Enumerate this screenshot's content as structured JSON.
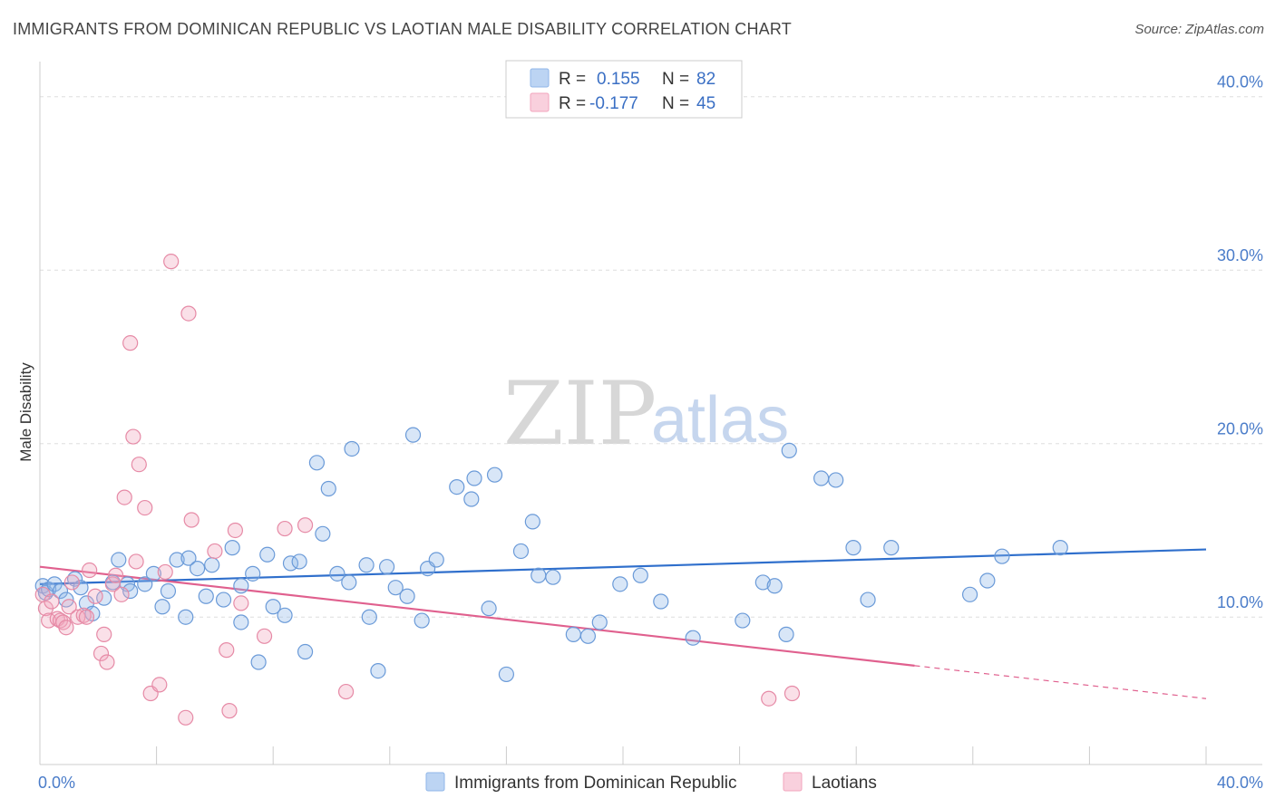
{
  "header": {
    "title": "IMMIGRANTS FROM DOMINICAN REPUBLIC VS LAOTIAN MALE DISABILITY CORRELATION CHART",
    "source": "Source: ZipAtlas.com"
  },
  "watermark": {
    "zip": "ZIP",
    "atlas": "atlas"
  },
  "legend_box": {
    "rows": [
      {
        "r_label": "R =",
        "r_value": "0.155",
        "n_label": "N =",
        "n_value": "82",
        "color": "#8fb6e8"
      },
      {
        "r_label": "R =",
        "r_value": "-0.177",
        "n_label": "N =",
        "n_value": "45",
        "color": "#f2a5bd"
      }
    ]
  },
  "chart_data": {
    "type": "scatter",
    "title": "IMMIGRANTS FROM DOMINICAN REPUBLIC VS LAOTIAN MALE DISABILITY CORRELATION CHART",
    "xlabel": "",
    "ylabel": "Male Disability",
    "xlim": [
      0,
      40
    ],
    "ylim": [
      1.5,
      41.5
    ],
    "x_tick_labels": [
      "0.0%",
      "40.0%"
    ],
    "y_ticks": [
      10,
      20,
      30,
      40
    ],
    "y_tick_labels": [
      "10.0%",
      "20.0%",
      "30.0%",
      "40.0%"
    ],
    "grid": true,
    "legend_placement": "bottom-center",
    "series": [
      {
        "name": "Immigrants from Dominican Republic",
        "color": "#8fb6e8",
        "stroke": "#6a9ad8",
        "trend": {
          "x": [
            0,
            40
          ],
          "y": [
            11.9,
            13.9
          ],
          "color": "#2f6fcc",
          "dashed_from": null
        },
        "points": [
          [
            0.1,
            11.8
          ],
          [
            0.2,
            11.4
          ],
          [
            0.3,
            11.6
          ],
          [
            0.5,
            11.9
          ],
          [
            0.7,
            11.5
          ],
          [
            0.9,
            11.0
          ],
          [
            1.2,
            12.2
          ],
          [
            1.4,
            11.7
          ],
          [
            1.6,
            10.8
          ],
          [
            1.8,
            10.2
          ],
          [
            2.2,
            11.1
          ],
          [
            2.5,
            12.0
          ],
          [
            2.7,
            13.3
          ],
          [
            3.0,
            11.9
          ],
          [
            3.1,
            11.5
          ],
          [
            3.6,
            11.9
          ],
          [
            3.9,
            12.5
          ],
          [
            4.2,
            10.6
          ],
          [
            4.4,
            11.5
          ],
          [
            4.7,
            13.3
          ],
          [
            5.0,
            10.0
          ],
          [
            5.1,
            13.4
          ],
          [
            5.4,
            12.8
          ],
          [
            5.7,
            11.2
          ],
          [
            5.9,
            13.0
          ],
          [
            6.3,
            11.0
          ],
          [
            6.6,
            14.0
          ],
          [
            6.9,
            9.7
          ],
          [
            6.9,
            11.8
          ],
          [
            7.3,
            12.5
          ],
          [
            7.5,
            7.4
          ],
          [
            7.8,
            13.6
          ],
          [
            8.0,
            10.6
          ],
          [
            8.4,
            10.1
          ],
          [
            8.6,
            13.1
          ],
          [
            8.9,
            13.2
          ],
          [
            9.1,
            8.0
          ],
          [
            9.5,
            18.9
          ],
          [
            9.7,
            14.8
          ],
          [
            9.9,
            17.4
          ],
          [
            10.2,
            12.5
          ],
          [
            10.6,
            12.0
          ],
          [
            10.7,
            19.7
          ],
          [
            11.2,
            13.0
          ],
          [
            11.3,
            10.0
          ],
          [
            11.6,
            6.9
          ],
          [
            11.9,
            12.9
          ],
          [
            12.2,
            11.7
          ],
          [
            12.6,
            11.2
          ],
          [
            12.8,
            20.5
          ],
          [
            13.1,
            9.8
          ],
          [
            13.3,
            12.8
          ],
          [
            13.6,
            13.3
          ],
          [
            14.3,
            17.5
          ],
          [
            14.8,
            16.8
          ],
          [
            14.9,
            18.0
          ],
          [
            15.4,
            10.5
          ],
          [
            15.6,
            18.2
          ],
          [
            16.0,
            6.7
          ],
          [
            16.5,
            13.8
          ],
          [
            16.9,
            15.5
          ],
          [
            17.1,
            12.4
          ],
          [
            17.6,
            12.3
          ],
          [
            18.3,
            9.0
          ],
          [
            18.8,
            8.9
          ],
          [
            19.2,
            9.7
          ],
          [
            19.9,
            11.9
          ],
          [
            20.6,
            12.4
          ],
          [
            21.3,
            10.9
          ],
          [
            22.4,
            8.8
          ],
          [
            24.1,
            9.8
          ],
          [
            24.8,
            12.0
          ],
          [
            25.2,
            11.8
          ],
          [
            25.6,
            9.0
          ],
          [
            25.7,
            19.6
          ],
          [
            26.8,
            18.0
          ],
          [
            27.3,
            17.9
          ],
          [
            27.9,
            14.0
          ],
          [
            28.4,
            11.0
          ],
          [
            29.2,
            14.0
          ],
          [
            31.9,
            11.3
          ],
          [
            32.5,
            12.1
          ],
          [
            33.0,
            13.5
          ],
          [
            35.0,
            14.0
          ]
        ]
      },
      {
        "name": "Laotians",
        "color": "#f2a5bd",
        "stroke": "#e68aa6",
        "trend": {
          "x": [
            0,
            40
          ],
          "y": [
            12.9,
            5.3
          ],
          "color": "#e0608e",
          "dashed_from": 30.0
        },
        "points": [
          [
            0.1,
            11.3
          ],
          [
            0.2,
            10.5
          ],
          [
            0.3,
            9.8
          ],
          [
            0.4,
            10.9
          ],
          [
            0.6,
            9.9
          ],
          [
            0.7,
            9.8
          ],
          [
            0.8,
            9.7
          ],
          [
            0.9,
            9.4
          ],
          [
            1.0,
            10.6
          ],
          [
            1.1,
            12.0
          ],
          [
            1.3,
            10.0
          ],
          [
            1.5,
            10.1
          ],
          [
            1.6,
            10.0
          ],
          [
            1.7,
            12.7
          ],
          [
            1.9,
            11.2
          ],
          [
            2.1,
            7.9
          ],
          [
            2.2,
            9.0
          ],
          [
            2.3,
            7.4
          ],
          [
            2.5,
            11.9
          ],
          [
            2.6,
            12.4
          ],
          [
            2.8,
            11.3
          ],
          [
            2.9,
            16.9
          ],
          [
            3.1,
            25.8
          ],
          [
            3.2,
            20.4
          ],
          [
            3.3,
            13.2
          ],
          [
            3.4,
            18.8
          ],
          [
            3.6,
            16.3
          ],
          [
            3.8,
            5.6
          ],
          [
            4.1,
            6.1
          ],
          [
            4.3,
            12.6
          ],
          [
            4.5,
            30.5
          ],
          [
            5.0,
            4.2
          ],
          [
            5.1,
            27.5
          ],
          [
            5.2,
            15.6
          ],
          [
            6.0,
            13.8
          ],
          [
            6.4,
            8.1
          ],
          [
            6.5,
            4.6
          ],
          [
            6.7,
            15.0
          ],
          [
            6.9,
            10.8
          ],
          [
            7.7,
            8.9
          ],
          [
            8.4,
            15.1
          ],
          [
            9.1,
            15.3
          ],
          [
            10.5,
            5.7
          ],
          [
            25.0,
            5.3
          ],
          [
            25.8,
            5.6
          ]
        ]
      }
    ]
  }
}
